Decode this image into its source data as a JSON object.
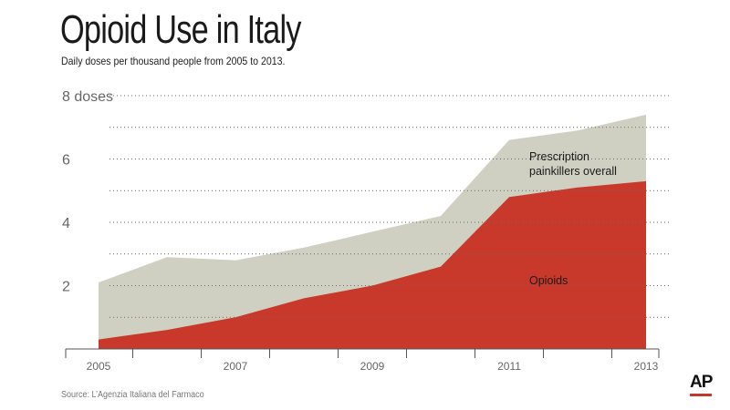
{
  "title": "Opioid Use in Italy",
  "subtitle": "Daily doses per thousand people from 2005 to 2013.",
  "source": "Source: L’Agenzia Italiana del Farmaco",
  "logo": "AP",
  "chart_data": {
    "type": "area",
    "x": [
      2005,
      2006,
      2007,
      2008,
      2009,
      2010,
      2011,
      2012,
      2013
    ],
    "xlim": [
      2005,
      2013
    ],
    "ylim": [
      0,
      8
    ],
    "grid": true,
    "x_tick_labels": [
      "2005",
      "2007",
      "2009",
      "2011",
      "2013"
    ],
    "x_tick_values": [
      2005,
      2007,
      2009,
      2011,
      2013
    ],
    "y_tick_labels": [
      "2",
      "4",
      "6",
      "8 doses"
    ],
    "y_tick_values": [
      2,
      4,
      6,
      8
    ],
    "series": [
      {
        "name": "Prescription painkillers overall",
        "values": [
          2.1,
          2.9,
          2.8,
          3.2,
          3.7,
          4.2,
          6.6,
          6.9,
          7.4
        ],
        "color": "#cfcfc2"
      },
      {
        "name": "Opioids",
        "values": [
          0.3,
          0.6,
          1.0,
          1.6,
          2.0,
          2.6,
          4.8,
          5.1,
          5.3
        ],
        "color": "#c8392b"
      }
    ],
    "annotations": [
      {
        "text_lines": [
          "Prescription",
          "painkillers overall"
        ],
        "series": "Prescription painkillers overall"
      },
      {
        "text_lines": [
          "Opioids"
        ],
        "series": "Opioids"
      }
    ]
  }
}
